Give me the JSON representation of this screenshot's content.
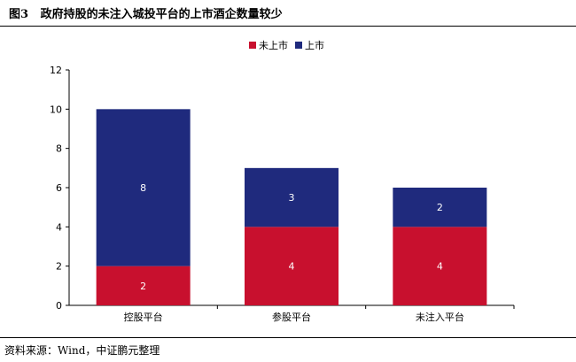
{
  "figure": {
    "label": "图3",
    "title": "政府持股的未注入城投平台的上市酒企数量较少",
    "source": "资料来源：Wind，中证鹏元整理"
  },
  "colors": {
    "unlisted": "#C8102E",
    "listed": "#1F2A7D",
    "axis": "#000000",
    "bar_label": "#ffffff"
  },
  "chart_data": {
    "type": "bar",
    "stacked": true,
    "categories": [
      "控股平台",
      "参股平台",
      "未注入平台"
    ],
    "series": [
      {
        "name": "未上市",
        "values": [
          2,
          4,
          4
        ],
        "color": "#C8102E"
      },
      {
        "name": "上市",
        "values": [
          8,
          3,
          2
        ],
        "color": "#1F2A7D"
      }
    ],
    "ylim": [
      0,
      12
    ],
    "yticks": [
      "0",
      "2",
      "4",
      "6",
      "8",
      "10",
      "12"
    ],
    "grid": false,
    "legend_position": "top-center",
    "xlabel": "",
    "ylabel": ""
  }
}
